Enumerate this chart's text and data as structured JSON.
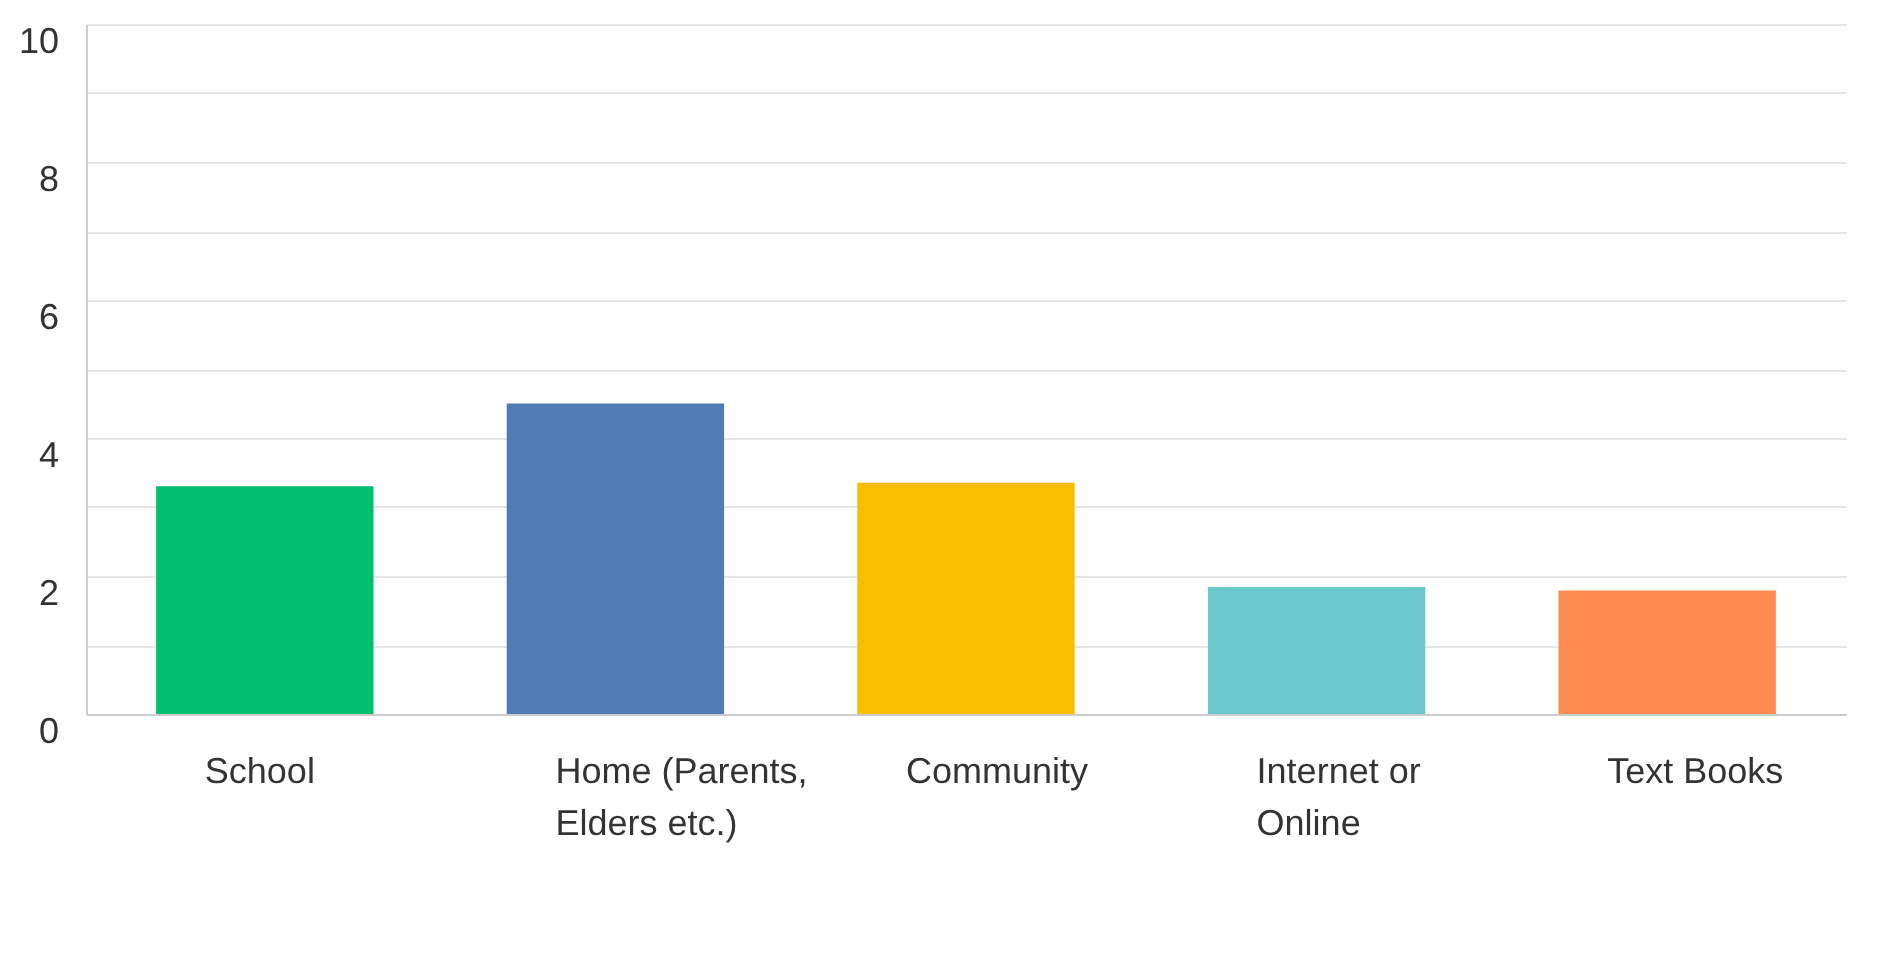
{
  "chart_data": {
    "type": "bar",
    "categories": [
      "School",
      "Home (Parents, Elders etc.)",
      "Community",
      "Internet or Online",
      "Text Books"
    ],
    "values": [
      3.3,
      4.5,
      3.35,
      1.84,
      1.79
    ],
    "colors": [
      "#00bf6f",
      "#507cb6",
      "#f9be00",
      "#6bc8cd",
      "#ff8b4f"
    ],
    "ylim": [
      0,
      10
    ],
    "yticks": [
      0,
      {
        "value": 1,
        "label": null
      },
      2,
      {
        "value": 3,
        "label": null
      },
      4,
      {
        "value": 5,
        "label": null
      },
      6,
      {
        "value": 7,
        "label": null
      },
      8,
      {
        "value": 9,
        "label": null
      },
      10
    ],
    "grid": "y"
  }
}
